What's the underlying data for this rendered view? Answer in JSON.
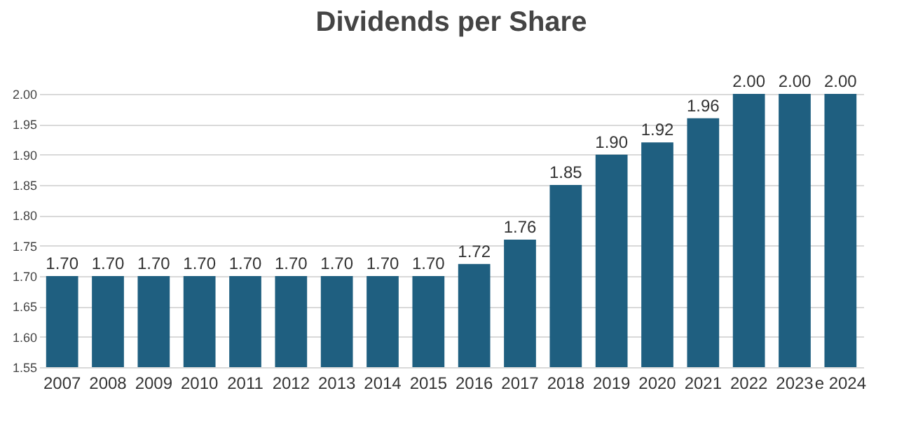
{
  "chart_data": {
    "type": "bar",
    "title": "Dividends per Share",
    "categories": [
      "2007",
      "2008",
      "2009",
      "2010",
      "2011",
      "2012",
      "2013",
      "2014",
      "2015",
      "2016",
      "2017",
      "2018",
      "2019",
      "2020",
      "2021",
      "2022",
      "2023",
      "e 2024"
    ],
    "values": [
      1.7,
      1.7,
      1.7,
      1.7,
      1.7,
      1.7,
      1.7,
      1.7,
      1.7,
      1.72,
      1.76,
      1.85,
      1.9,
      1.92,
      1.96,
      2.0,
      2.0,
      2.0
    ],
    "value_labels": [
      "1.70",
      "1.70",
      "1.70",
      "1.70",
      "1.70",
      "1.70",
      "1.70",
      "1.70",
      "1.70",
      "1.72",
      "1.76",
      "1.85",
      "1.90",
      "1.92",
      "1.96",
      "2.00",
      "2.00",
      "2.00"
    ],
    "color": "#1f5f80",
    "ylim": [
      1.55,
      2.0
    ],
    "yticks": [
      {
        "value": 1.55,
        "label": "1.55"
      },
      {
        "value": 1.6,
        "label": "1.60"
      },
      {
        "value": 1.65,
        "label": "1.65"
      },
      {
        "value": 1.7,
        "label": "1.70"
      },
      {
        "value": 1.75,
        "label": "1.75"
      },
      {
        "value": 1.8,
        "label": "1.80"
      },
      {
        "value": 1.85,
        "label": "1.85"
      },
      {
        "value": 1.9,
        "label": "1.90"
      },
      {
        "value": 1.95,
        "label": "1.95"
      },
      {
        "value": 2.0,
        "label": "2.00"
      }
    ],
    "grid": true
  }
}
